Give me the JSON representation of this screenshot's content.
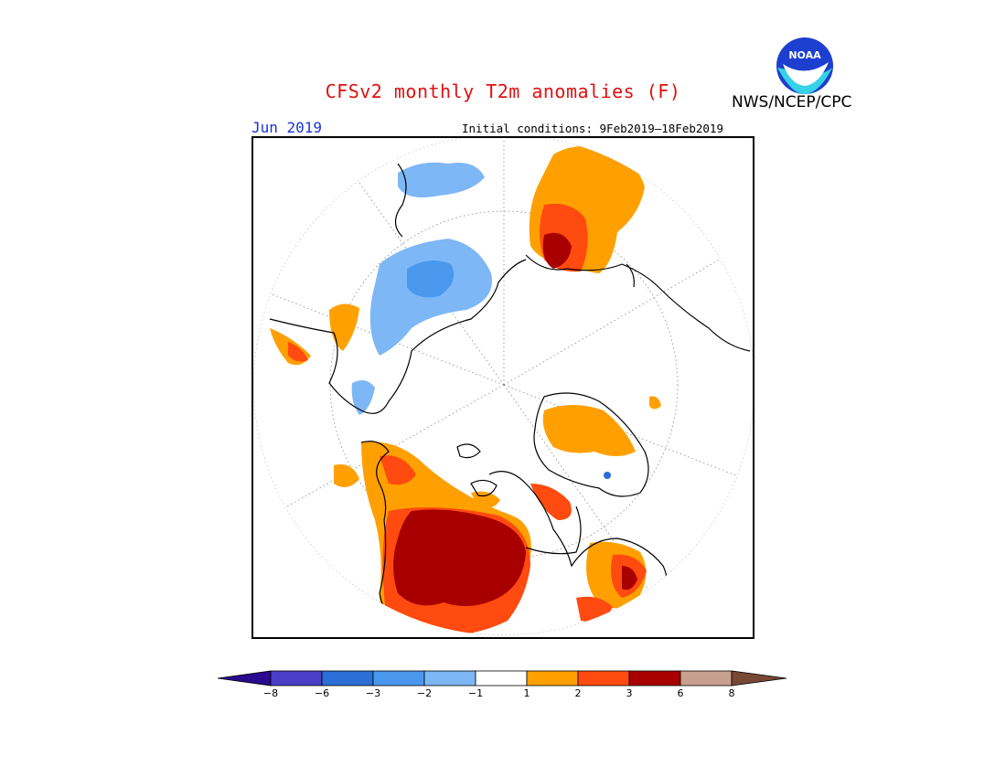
{
  "header": {
    "title": "CFSv2 monthly T2m anomalies (F)",
    "agency": "NWS/NCEP/CPC",
    "period": "Jun 2019",
    "initial_conditions": "Initial conditions: 9Feb2019–18Feb2019"
  },
  "logo": {
    "text": "NOAA",
    "icon": "noaa-logo-icon"
  },
  "colorbar": {
    "colors": [
      "#2a0a8f",
      "#4a3ec6",
      "#2a6ed6",
      "#4a98ee",
      "#7db7f5",
      "#ffffff",
      "#ffa000",
      "#ff4a10",
      "#a80000",
      "#c8a090",
      "#784834"
    ],
    "labels": [
      "−8",
      "−6",
      "−3",
      "−2",
      "−1",
      "1",
      "2",
      "3",
      "6",
      "8"
    ]
  },
  "legend_colors": {
    "cold_mid": "#6aacf0",
    "cold_strong": "#3a86e6",
    "warm_1": "#ffa000",
    "warm_2": "#ff4a10",
    "warm_3": "#a80000"
  }
}
